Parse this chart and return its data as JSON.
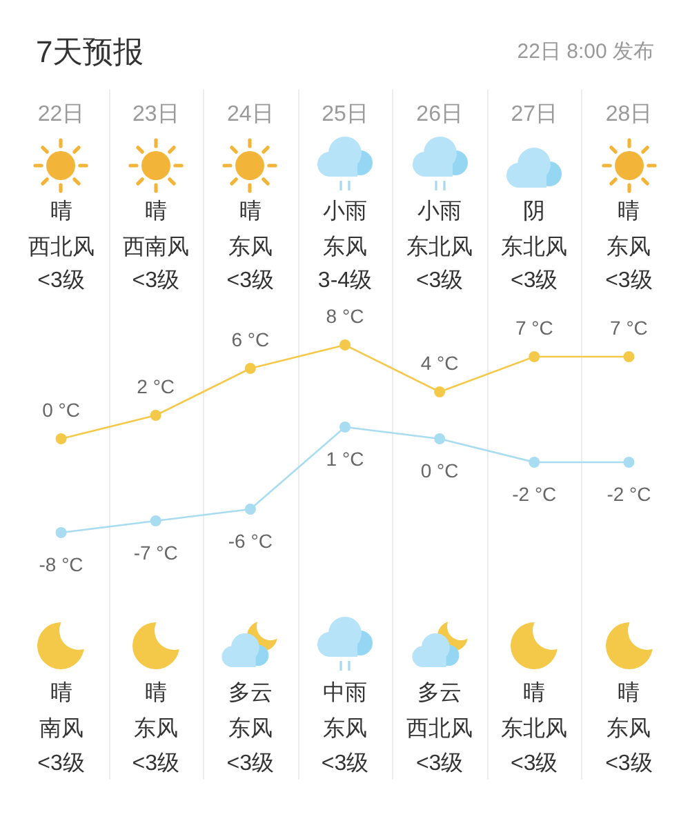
{
  "chart_data": {
    "type": "line",
    "title": "7天预报",
    "subtitle": "22日 8:00 发布",
    "categories": [
      "22日",
      "23日",
      "24日",
      "25日",
      "26日",
      "27日",
      "28日"
    ],
    "series": [
      {
        "color": "#f4c94a",
        "values": [
          0,
          2,
          6,
          8,
          4,
          7,
          7
        ],
        "value_labels": [
          "0 °C",
          "2 °C",
          "6 °C",
          "8 °C",
          "4 °C",
          "7 °C",
          "7 °C"
        ]
      },
      {
        "color": "#a8dcf0",
        "values": [
          -8,
          -7,
          -6,
          1,
          0,
          -2,
          -2
        ],
        "value_labels": [
          "-8 °C",
          "-7 °C",
          "-6 °C",
          "1 °C",
          "0 °C",
          "-2 °C",
          "-2 °C"
        ]
      }
    ],
    "marker": "circle",
    "tick_labels": "x",
    "annotations": [
      "晴",
      "晴",
      "晴",
      "小雨",
      "小雨",
      "阴",
      "晴",
      "西北风",
      "西南风",
      "东风",
      "东风",
      "东北风",
      "东北风",
      "东风",
      "<3级",
      "<3级",
      "<3级",
      "3-4级",
      "<3级",
      "<3级",
      "<3级",
      "晴",
      "晴",
      "多云",
      "中雨",
      "多云",
      "晴",
      "晴",
      "南风",
      "东风",
      "东风",
      "东风",
      "西北风",
      "东北风",
      "东风",
      "<3级",
      "<3级",
      "<3级",
      "<3级",
      "<3级",
      "<3级",
      "<3级"
    ]
  }
}
